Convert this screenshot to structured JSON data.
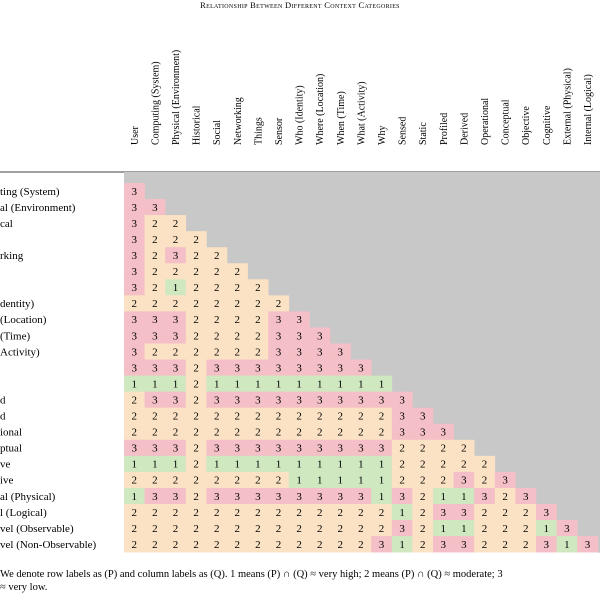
{
  "caption": "Relationship Between Different Context Categories",
  "columns": [
    "User",
    "Computing (System)",
    "Physical (Environment)",
    "Historical",
    "Social",
    "Networking",
    "Things",
    "Sensor",
    "Who (Identity)",
    "Where (Location)",
    "When (Time)",
    "What (Activity)",
    "Why",
    "Sensed",
    "Static",
    "Profiled",
    "Derived",
    "Operational",
    "Conceptual",
    "Objective",
    "Cognitive",
    "External (Physical)",
    "Internal (Logical)"
  ],
  "row_labels": [
    "ting (System)",
    "al (Environment)",
    "cal",
    "",
    "rking",
    "",
    "",
    "dentity)",
    "(Location)",
    "(Time)",
    "Activity)",
    "",
    "",
    "d",
    "d",
    "ional",
    "ptual",
    "ve",
    "ive",
    "al (Physical)",
    "l (Logical)",
    "vel (Observable)",
    "vel (Non-Observable)"
  ],
  "rows": [
    [
      3
    ],
    [
      3,
      3
    ],
    [
      3,
      2,
      2
    ],
    [
      3,
      2,
      2,
      2
    ],
    [
      3,
      2,
      3,
      2,
      2
    ],
    [
      3,
      2,
      2,
      2,
      2,
      2
    ],
    [
      3,
      2,
      1,
      2,
      2,
      2,
      2
    ],
    [
      2,
      2,
      2,
      2,
      2,
      2,
      2,
      2
    ],
    [
      3,
      3,
      3,
      2,
      2,
      2,
      2,
      3,
      3
    ],
    [
      3,
      3,
      3,
      2,
      2,
      2,
      2,
      3,
      3,
      3
    ],
    [
      3,
      2,
      2,
      2,
      2,
      2,
      2,
      3,
      3,
      3,
      3
    ],
    [
      3,
      3,
      3,
      2,
      3,
      3,
      3,
      3,
      3,
      3,
      3,
      3
    ],
    [
      1,
      1,
      1,
      2,
      1,
      1,
      1,
      1,
      1,
      1,
      1,
      1,
      1
    ],
    [
      2,
      3,
      3,
      2,
      3,
      3,
      3,
      3,
      3,
      3,
      3,
      3,
      3,
      3
    ],
    [
      2,
      2,
      2,
      2,
      2,
      2,
      2,
      2,
      2,
      2,
      2,
      2,
      2,
      3,
      3
    ],
    [
      2,
      2,
      2,
      2,
      2,
      2,
      2,
      2,
      2,
      2,
      2,
      2,
      2,
      3,
      3,
      3
    ],
    [
      3,
      3,
      3,
      2,
      3,
      3,
      3,
      3,
      3,
      3,
      3,
      3,
      3,
      2,
      2,
      2,
      2
    ],
    [
      1,
      1,
      1,
      2,
      1,
      1,
      1,
      1,
      1,
      1,
      1,
      1,
      1,
      2,
      2,
      2,
      2,
      2
    ],
    [
      2,
      2,
      2,
      2,
      2,
      2,
      2,
      2,
      1,
      1,
      1,
      1,
      1,
      2,
      2,
      2,
      3,
      2,
      3
    ],
    [
      1,
      3,
      3,
      2,
      3,
      3,
      3,
      3,
      3,
      3,
      3,
      3,
      1,
      3,
      2,
      1,
      1,
      3,
      2,
      3
    ],
    [
      2,
      2,
      2,
      2,
      2,
      2,
      2,
      2,
      2,
      2,
      2,
      2,
      2,
      1,
      2,
      3,
      3,
      2,
      2,
      2,
      3
    ],
    [
      2,
      2,
      2,
      2,
      2,
      2,
      2,
      2,
      2,
      2,
      2,
      2,
      2,
      3,
      2,
      1,
      1,
      2,
      2,
      2,
      1,
      3
    ],
    [
      2,
      2,
      2,
      2,
      2,
      2,
      2,
      2,
      2,
      2,
      2,
      2,
      3,
      1,
      2,
      3,
      3,
      2,
      2,
      2,
      3,
      1,
      3
    ]
  ],
  "value_colors": {
    "1": "#cfe8bf",
    "2": "#fbe2c4",
    "3": "#f4bfc6"
  },
  "masked_color": "#c8c8c8",
  "footnote_line1": "We denote row labels as (P) and column labels as (Q). 1 means (P) ∩ (Q) ≈ very high; 2 means (P) ∩ (Q) ≈ moderate; 3",
  "footnote_line2": "≈ very low."
}
